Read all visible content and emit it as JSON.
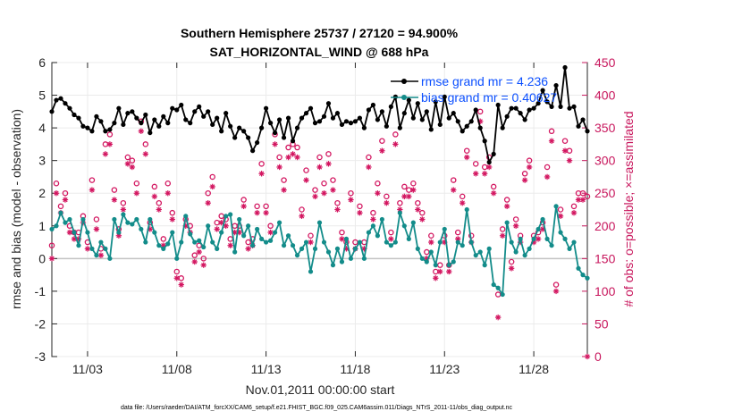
{
  "chart_data": {
    "type": "line",
    "title_line1": "Southern Hemisphere 25737 / 27120 = 94.900%",
    "title_line2": "SAT_HORIZONTAL_WIND @ 688 hPa",
    "xlabel": "Nov.01,2011 00:00:00 start",
    "ylabel": "rmse and bias (model - observation)",
    "y2label": "# of obs: o=possible; ×=assimilated",
    "footnote": "data file: /Users/raeder/DAI/ATM_forcXX/CAM6_setup/f.e21.FHIST_BGC.f09_025.CAM6assim.011/Diags_NTrS_2011-11/obs_diag_output.nc",
    "xlim": [
      1,
      31
    ],
    "ylim": [
      -3,
      6
    ],
    "y2lim": [
      0,
      450
    ],
    "x_ticks": [
      3,
      8,
      13,
      18,
      23,
      28
    ],
    "x_tick_labels": [
      "11/03",
      "11/08",
      "11/13",
      "11/18",
      "11/23",
      "11/28"
    ],
    "y_ticks": [
      "-3",
      "-2",
      "-1",
      "0",
      "1",
      "2",
      "3",
      "4",
      "5",
      "6"
    ],
    "y2_ticks": [
      "0",
      "50",
      "100",
      "150",
      "200",
      "250",
      "300",
      "350",
      "400",
      "450"
    ],
    "legend": [
      "rmse grand mr = 4.236",
      "bias grand mr = 0.40627"
    ],
    "colors": {
      "rmse": "#000000",
      "bias": "#138c8a",
      "obs": "#d31660",
      "zero_line": "#c3c3c3",
      "legend_text": "#0b4fff"
    },
    "series": [
      {
        "name": "rmse",
        "x": [
          1.0,
          1.25,
          1.5,
          1.75,
          2.0,
          2.25,
          2.5,
          2.75,
          3.0,
          3.25,
          3.5,
          3.75,
          4.0,
          4.25,
          4.5,
          4.75,
          5.0,
          5.25,
          5.5,
          5.75,
          6.0,
          6.25,
          6.5,
          6.75,
          7.0,
          7.25,
          7.5,
          7.75,
          8.0,
          8.25,
          8.5,
          8.75,
          9.0,
          9.25,
          9.5,
          9.75,
          10.0,
          10.25,
          10.5,
          10.75,
          11.0,
          11.25,
          11.5,
          11.75,
          12.0,
          12.25,
          12.5,
          12.75,
          13.0,
          13.25,
          13.5,
          13.75,
          14.0,
          14.25,
          14.5,
          14.75,
          15.0,
          15.25,
          15.5,
          15.75,
          16.0,
          16.25,
          16.5,
          16.75,
          17.0,
          17.25,
          17.5,
          17.75,
          18.0,
          18.25,
          18.5,
          18.75,
          19.0,
          19.25,
          19.5,
          19.75,
          20.0,
          20.25,
          20.5,
          20.75,
          21.0,
          21.25,
          21.5,
          21.75,
          22.0,
          22.25,
          22.5,
          22.75,
          23.0,
          23.25,
          23.5,
          23.75,
          24.0,
          24.25,
          24.5,
          24.75,
          25.0,
          25.25,
          25.5,
          25.75,
          26.0,
          26.25,
          26.5,
          26.75,
          27.0,
          27.25,
          27.5,
          27.75,
          28.0,
          28.25,
          28.5,
          28.75,
          29.0,
          29.25,
          29.5,
          29.75,
          30.0,
          30.25,
          30.5,
          30.75,
          31.0
        ],
        "values": [
          4.5,
          4.85,
          4.9,
          4.75,
          4.6,
          4.4,
          4.3,
          4.05,
          4.0,
          3.9,
          4.35,
          4.2,
          3.9,
          3.95,
          4.15,
          4.6,
          4.1,
          4.45,
          4.5,
          4.3,
          4.15,
          4.4,
          3.85,
          4.25,
          4.05,
          4.35,
          4.15,
          4.6,
          4.55,
          4.7,
          4.25,
          4.15,
          4.5,
          4.65,
          4.35,
          4.5,
          4.1,
          4.3,
          3.9,
          4.45,
          4.05,
          3.7,
          4.0,
          3.9,
          3.7,
          3.3,
          3.55,
          4.0,
          4.6,
          4.15,
          3.85,
          4.25,
          3.7,
          4.3,
          3.6,
          4.0,
          4.3,
          4.45,
          4.6,
          4.15,
          4.2,
          4.35,
          4.75,
          4.3,
          4.45,
          4.1,
          4.2,
          4.15,
          4.2,
          4.3,
          4.0,
          4.55,
          4.7,
          4.25,
          4.5,
          4.05,
          4.65,
          4.95,
          4.0,
          4.45,
          4.85,
          4.3,
          4.75,
          4.25,
          4.5,
          3.95,
          4.8,
          4.1,
          4.95,
          4.3,
          4.45,
          4.2,
          3.9,
          4.05,
          4.2,
          4.55,
          4.0,
          3.6,
          2.95,
          3.2,
          4.7,
          4.0,
          4.35,
          4.6,
          4.6,
          4.45,
          4.25,
          4.55,
          4.6,
          4.75,
          5.15,
          4.8,
          4.65,
          5.3,
          4.65,
          5.85,
          4.6,
          4.65,
          4.05,
          4.25,
          3.9
        ],
        "marker": "filled-circle"
      },
      {
        "name": "bias",
        "x": [
          1.0,
          1.25,
          1.5,
          1.75,
          2.0,
          2.25,
          2.5,
          2.75,
          3.0,
          3.25,
          3.5,
          3.75,
          4.0,
          4.25,
          4.5,
          4.75,
          5.0,
          5.25,
          5.5,
          5.75,
          6.0,
          6.25,
          6.5,
          6.75,
          7.0,
          7.25,
          7.5,
          7.75,
          8.0,
          8.25,
          8.5,
          8.75,
          9.0,
          9.25,
          9.5,
          9.75,
          10.0,
          10.25,
          10.5,
          10.75,
          11.0,
          11.25,
          11.5,
          11.75,
          12.0,
          12.25,
          12.5,
          12.75,
          13.0,
          13.25,
          13.5,
          13.75,
          14.0,
          14.25,
          14.5,
          14.75,
          15.0,
          15.25,
          15.5,
          15.75,
          16.0,
          16.25,
          16.5,
          16.75,
          17.0,
          17.25,
          17.5,
          17.75,
          18.0,
          18.25,
          18.5,
          18.75,
          19.0,
          19.25,
          19.5,
          19.75,
          20.0,
          20.25,
          20.5,
          20.75,
          21.0,
          21.25,
          21.5,
          21.75,
          22.0,
          22.25,
          22.5,
          22.75,
          23.0,
          23.25,
          23.5,
          23.75,
          24.0,
          24.25,
          24.5,
          24.75,
          25.0,
          25.25,
          25.5,
          25.75,
          26.0,
          26.25,
          26.5,
          26.75,
          27.0,
          27.25,
          27.5,
          27.75,
          28.0,
          28.25,
          28.5,
          28.75,
          29.0,
          29.25,
          29.5,
          29.75,
          30.0,
          30.25,
          30.5,
          30.75,
          31.0
        ],
        "values": [
          0.9,
          1.0,
          1.4,
          1.1,
          1.2,
          0.8,
          0.4,
          1.2,
          0.8,
          0.3,
          0.1,
          0.5,
          0.3,
          0.0,
          1.2,
          0.8,
          1.35,
          1.1,
          1.05,
          1.2,
          0.9,
          0.5,
          1.2,
          0.8,
          0.4,
          0.3,
          0.45,
          0.8,
          0.0,
          0.5,
          1.3,
          0.75,
          0.5,
          0.55,
          0.35,
          1.0,
          0.5,
          0.3,
          0.8,
          1.3,
          1.35,
          0.2,
          1.2,
          0.7,
          1.0,
          0.4,
          0.9,
          0.6,
          0.5,
          0.55,
          0.8,
          1.1,
          0.4,
          0.7,
          0.4,
          0.1,
          0.3,
          0.5,
          -0.4,
          0.3,
          1.1,
          0.5,
          0.2,
          -0.2,
          0.3,
          -0.1,
          0.6,
          0.0,
          0.3,
          0.5,
          0.0,
          0.8,
          1.0,
          0.7,
          1.2,
          0.5,
          0.4,
          0.5,
          1.4,
          1.0,
          0.6,
          1.1,
          0.3,
          0.0,
          -0.1,
          0.2,
          -0.2,
          0.5,
          0.9,
          -0.2,
          -0.1,
          0.5,
          0.4,
          1.5,
          0.5,
          0.1,
          0.2,
          -0.2,
          0.3,
          -0.8,
          -0.9,
          -1.1,
          1.1,
          0.5,
          0.2,
          0.6,
          0.1,
          0.3,
          0.6,
          0.9,
          1.2,
          0.6,
          0.4,
          1.6,
          0.8,
          0.6,
          0.3,
          0.5,
          -0.3,
          -0.5,
          -0.6
        ],
        "marker": "filled-circle"
      },
      {
        "name": "possible",
        "x": [
          1.0,
          1.25,
          1.5,
          1.75,
          2.0,
          2.25,
          2.5,
          2.75,
          3.0,
          3.25,
          3.5,
          3.75,
          4.0,
          4.25,
          4.5,
          4.75,
          5.0,
          5.25,
          5.5,
          5.75,
          6.0,
          6.25,
          6.5,
          6.75,
          7.0,
          7.25,
          7.5,
          7.75,
          8.0,
          8.25,
          8.5,
          8.75,
          9.0,
          9.25,
          9.5,
          9.75,
          10.0,
          10.25,
          10.5,
          10.75,
          11.0,
          11.25,
          11.5,
          11.75,
          12.0,
          12.25,
          12.5,
          12.75,
          13.0,
          13.25,
          13.5,
          13.75,
          14.0,
          14.25,
          14.5,
          14.75,
          15.0,
          15.25,
          15.5,
          15.75,
          16.0,
          16.25,
          16.5,
          16.75,
          17.0,
          17.25,
          17.5,
          17.75,
          18.0,
          18.25,
          18.5,
          18.75,
          19.0,
          19.25,
          19.5,
          19.75,
          20.0,
          20.25,
          20.5,
          20.75,
          21.0,
          21.25,
          21.5,
          21.75,
          22.0,
          22.25,
          22.5,
          22.75,
          23.0,
          23.25,
          23.5,
          23.75,
          24.0,
          24.25,
          24.5,
          24.75,
          25.0,
          25.25,
          25.5,
          25.75,
          26.0,
          26.25,
          26.5,
          26.75,
          27.0,
          27.25,
          27.5,
          27.75,
          28.0,
          28.25,
          28.5,
          28.75,
          29.0,
          29.25,
          29.5,
          29.75,
          30.0,
          30.25,
          30.5,
          30.75,
          31.0
        ],
        "values": [
          170,
          265,
          230,
          250,
          200,
          190,
          190,
          215,
          175,
          270,
          210,
          165,
          325,
          340,
          255,
          195,
          235,
          305,
          300,
          265,
          360,
          325,
          205,
          260,
          235,
          180,
          265,
          220,
          130,
          120,
          210,
          200,
          155,
          170,
          150,
          250,
          275,
          205,
          215,
          210,
          180,
          200,
          200,
          240,
          175,
          180,
          230,
          295,
          230,
          200,
          340,
          305,
          270,
          320,
          325,
          320,
          225,
          285,
          185,
          255,
          305,
          265,
          310,
          270,
          235,
          190,
          175,
          250,
          175,
          230,
          175,
          305,
          220,
          265,
          330,
          245,
          190,
          340,
          235,
          260,
          255,
          265,
          235,
          220,
          160,
          185,
          130,
          140,
          185,
          140,
          270,
          190,
          245,
          315,
          185,
          295,
          375,
          290,
          305,
          260,
          95,
          195,
          240,
          145,
          210,
          185,
          280,
          300,
          185,
          190,
          205,
          290,
          345,
          110,
          225,
          330,
          315,
          230,
          250,
          250,
          245
        ],
        "marker": "open-circle"
      },
      {
        "name": "assimilated",
        "x": [
          1.0,
          1.25,
          1.5,
          1.75,
          2.0,
          2.25,
          2.5,
          2.75,
          3.0,
          3.25,
          3.5,
          3.75,
          4.0,
          4.25,
          4.5,
          4.75,
          5.0,
          5.25,
          5.5,
          5.75,
          6.0,
          6.25,
          6.5,
          6.75,
          7.0,
          7.25,
          7.5,
          7.75,
          8.0,
          8.25,
          8.5,
          8.75,
          9.0,
          9.25,
          9.5,
          9.75,
          10.0,
          10.25,
          10.5,
          10.75,
          11.0,
          11.25,
          11.5,
          11.75,
          12.0,
          12.25,
          12.5,
          12.75,
          13.0,
          13.25,
          13.5,
          13.75,
          14.0,
          14.25,
          14.5,
          14.75,
          15.0,
          15.25,
          15.5,
          15.75,
          16.0,
          16.25,
          16.5,
          16.75,
          17.0,
          17.25,
          17.5,
          17.75,
          18.0,
          18.25,
          18.5,
          18.75,
          19.0,
          19.25,
          19.5,
          19.75,
          20.0,
          20.25,
          20.5,
          20.75,
          21.0,
          21.25,
          21.5,
          21.75,
          22.0,
          22.25,
          22.5,
          22.75,
          23.0,
          23.25,
          23.5,
          23.75,
          24.0,
          24.25,
          24.5,
          24.75,
          25.0,
          25.25,
          25.5,
          25.75,
          26.0,
          26.25,
          26.5,
          26.75,
          27.0,
          27.25,
          27.5,
          27.75,
          28.0,
          28.25,
          28.5,
          28.75,
          29.0,
          29.25,
          29.5,
          29.75,
          30.0,
          30.25,
          30.5,
          30.75,
          31.0
        ],
        "values": [
          150,
          250,
          220,
          240,
          190,
          180,
          180,
          205,
          165,
          255,
          195,
          155,
          310,
          325,
          240,
          185,
          225,
          295,
          290,
          250,
          345,
          310,
          195,
          245,
          225,
          170,
          250,
          210,
          120,
          110,
          200,
          190,
          145,
          160,
          140,
          235,
          260,
          195,
          205,
          200,
          170,
          190,
          190,
          230,
          165,
          170,
          220,
          280,
          220,
          190,
          325,
          290,
          255,
          305,
          310,
          305,
          215,
          270,
          175,
          245,
          290,
          250,
          295,
          255,
          225,
          180,
          165,
          240,
          165,
          220,
          165,
          290,
          210,
          250,
          315,
          235,
          180,
          325,
          225,
          245,
          245,
          255,
          225,
          210,
          150,
          175,
          120,
          130,
          175,
          130,
          255,
          180,
          235,
          305,
          175,
          280,
          360,
          280,
          290,
          250,
          60,
          185,
          230,
          135,
          200,
          175,
          270,
          290,
          175,
          180,
          195,
          275,
          330,
          100,
          215,
          315,
          300,
          220,
          240,
          240,
          0
        ],
        "marker": "asterisk"
      }
    ]
  }
}
